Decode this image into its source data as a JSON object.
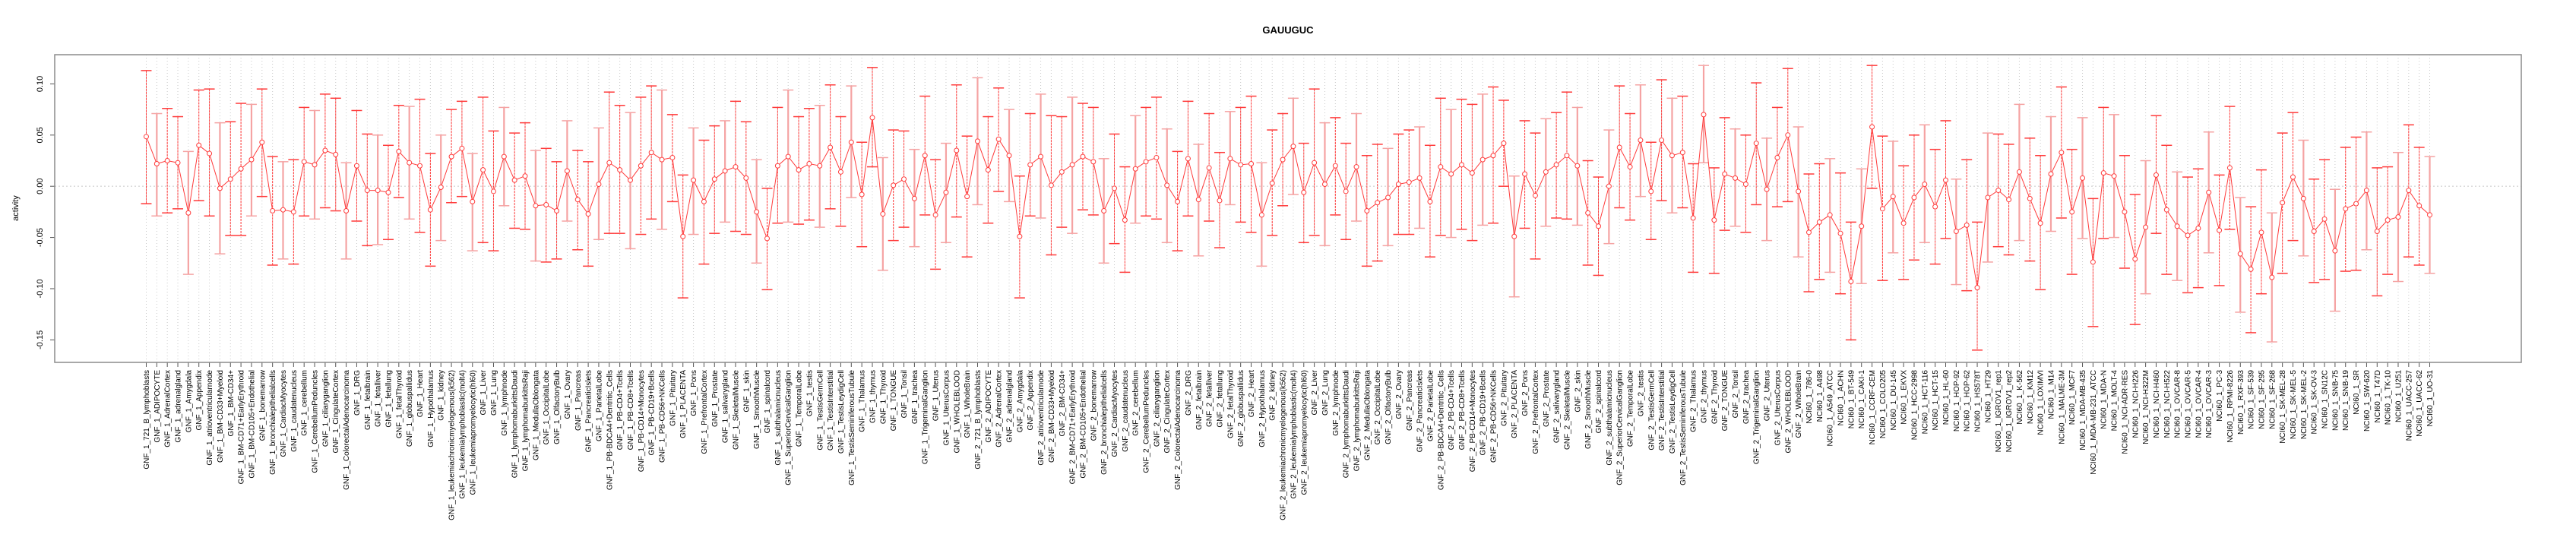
{
  "chart_data": {
    "type": "line",
    "title": "GAUUGUC",
    "xlabel": "",
    "ylabel": "activity",
    "ylim": [
      -0.172,
      0.1285
    ],
    "xlim": [
      -7.7,
      226.7
    ],
    "yticks": [
      -0.15,
      -0.1,
      -0.05,
      0.0,
      0.05,
      0.1
    ],
    "ytick_labels": [
      "-0.15",
      "-0.10",
      "-0.05",
      "0.00",
      "0.05",
      "0.10"
    ],
    "grid": "dotted vertical line per category, dotted horizontal line at 0",
    "colors": {
      "series": "#ff3b3b",
      "errorbar_light": "#f5a3a3",
      "grid": "#c8c8c8",
      "frame": "#8c8c8c"
    },
    "categories": [
      "GNF_1_721_B_lymphoblasts",
      "GNF_1_ADIPOCYTE",
      "GNF_1_AdrenalCortex",
      "GNF_1_adrenalgland",
      "GNF_1_Amygdala",
      "GNF_1_Appendix",
      "GNF_1_atrioventricularnode",
      "GNF_1_BM-CD33+Myeloid",
      "GNF_1_BM-CD34+",
      "GNF_1_BM-CD71+EarlyErythroid",
      "GNF_1_BM-CD105+Endothelial",
      "GNF_1_bonemarrow",
      "GNF_1_bronchialepithelialcells",
      "GNF_1_CardiacMyocytes",
      "GNF_1_caudatenucleus",
      "GNF_1_cerebellum",
      "GNF_1_CerebellumPeduncles",
      "GNF_1_ciliaryganglion",
      "GNF_1_CingulateCortex",
      "GNF_1_ColorectalAdenocarcinoma",
      "GNF_1_DRG",
      "GNF_1_fetalbrain",
      "GNF_1_fetalliver",
      "GNF_1_fetallung",
      "GNF_1_fetalThyroid",
      "GNF_1_globuspallidus",
      "GNF_1_Heart",
      "GNF_1_Hypothalamus",
      "GNF_1_kidney",
      "GNF_1_leukemiachronicmyelogenous(k562)",
      "GNF_1_leukemialymphoblastic(molt4)",
      "GNF_1_leukemiapromyelocytic(hl60)",
      "GNF_1_Liver",
      "GNF_1_Lung",
      "GNF_1_lymphnode",
      "GNF_1_lymphomaburkittsDaudi",
      "GNF_1_lymphomaburkittsRaji",
      "GNF_1_MedullaOblongata",
      "GNF_1_OccipitalLobe",
      "GNF_1_OlfactoryBulb",
      "GNF_1_Ovary",
      "GNF_1_Pancreas",
      "GNF_1_PancreaticIslets",
      "GNF_1_ParietalLobe",
      "GNF_1_PB-BDCA4+Dentritic_Cells",
      "GNF_1_PB-CD4+Tcells",
      "GNF_1_PB-CD8+Tcells",
      "GNF_1_PB-CD14+Monocytes",
      "GNF_1_PB-CD19+Bcells",
      "GNF_1_PB-CD56+NKCells",
      "GNF_1_Pituitary",
      "GNF_1_PLACENTA",
      "GNF_1_Pons",
      "GNF_1_PrefrontalCortex",
      "GNF_1_Prostate",
      "GNF_1_salivarygland",
      "GNF_1_SkeletalMuscle",
      "GNF_1_skin",
      "GNF_1_SmoothMuscle",
      "GNF_1_spinalcord",
      "GNF_1_subthalamicnucleus",
      "GNF_1_SuperiorCervicalGanglion",
      "GNF_1_TemporalLobe",
      "GNF_1_testis",
      "GNF_1_TestisGermCell",
      "GNF_1_TestisInterstitial",
      "GNF_1_TestisLeydigCell",
      "GNF_1_TestisSeminiferousTubule",
      "GNF_1_Thalamus",
      "GNF_1_thymus",
      "GNF_1_Thyroid",
      "GNF_1_TONGUE",
      "GNF_1_Tonsil",
      "GNF_1_trachea",
      "GNF_1_TrigeminalGanglion",
      "GNF_1_Uterus",
      "GNF_1_UterusCorpus",
      "GNF_1_WHOLEBLOOD",
      "GNF_1_WholeBrain",
      "GNF_2_721_B_lymphoblasts",
      "GNF_2_ADIPOCYTE",
      "GNF_2_AdrenalCortex",
      "GNF_2_adrenalgland",
      "GNF_2_Amygdala",
      "GNF_2_Appendix",
      "GNF_2_atrioventricularnode",
      "GNF_2_BM-CD33+Myeloid",
      "GNF_2_BM-CD34+",
      "GNF_2_BM-CD71+EarlyErythroid",
      "GNF_2_BM-CD105+Endothelial",
      "GNF_2_bonemarrow",
      "GNF_2_bronchialepithelialcells",
      "GNF_2_CardiacMyocytes",
      "GNF_2_caudatenucleus",
      "GNF_2_cerebellum",
      "GNF_2_CerebellumPeduncles",
      "GNF_2_ciliaryganglion",
      "GNF_2_CingulateCortex",
      "GNF_2_ColorectalAdenocarcinoma",
      "GNF_2_DRG",
      "GNF_2_fetalbrain",
      "GNF_2_fetalliver",
      "GNF_2_fetallung",
      "GNF_2_fetalThyroid",
      "GNF_2_globuspallidus",
      "GNF_2_Heart",
      "GNF_2_Hypothalamus",
      "GNF_2_kidney",
      "GNF_2_leukemiachronicmyelogenous(k562)",
      "GNF_2_leukemialymphoblastic(molt4)",
      "GNF_2_leukemiapromyelocytic(hl60)",
      "GNF_2_Liver",
      "GNF_2_Lung",
      "GNF_2_lymphnode",
      "GNF_2_lymphomaburkittsDaudi",
      "GNF_2_lymphomaburkittsRaji",
      "GNF_2_MedullaOblongata",
      "GNF_2_OccipitalLobe",
      "GNF_2_OlfactoryBulb",
      "GNF_2_Ovary",
      "GNF_2_Pancreas",
      "GNF_2_PancreaticIslets",
      "GNF_2_ParietalLobe",
      "GNF_2_PB-BDCA4+Dentritic_Cells",
      "GNF_2_PB-CD4+Tcells",
      "GNF_2_PB-CD8+Tcells",
      "GNF_2_PB-CD14+Monocytes",
      "GNF_2_PB-CD19+Bcells",
      "GNF_2_PB-CD56+NKCells",
      "GNF_2_Pituitary",
      "GNF_2_PLACENTA",
      "GNF_2_Pons",
      "GNF_2_PrefrontalCortex",
      "GNF_2_Prostate",
      "GNF_2_salivarygland",
      "GNF_2_SkeletalMuscle",
      "GNF_2_skin",
      "GNF_2_SmoothMuscle",
      "GNF_2_spinalcord",
      "GNF_2_subthalamicnucleus",
      "GNF_2_SuperiorCervicalGanglion",
      "GNF_2_TemporalLobe",
      "GNF_2_testis",
      "GNF_2_TestisGermCell",
      "GNF_2_TestisInterstitial",
      "GNF_2_TestisLeydigCell",
      "GNF_2_TestisSeminiferousTubule",
      "GNF_2_Thalamus",
      "GNF_2_thymus",
      "GNF_2_Thyroid",
      "GNF_2_TONGUE",
      "GNF_2_Tonsil",
      "GNF_2_trachea",
      "GNF_2_TrigeminalGanglion",
      "GNF_2_Uterus",
      "GNF_2_UterusCorpus",
      "GNF_2_WHOLEBLOOD",
      "GNF_2_WholeBrain",
      "NCI60_1_786-0",
      "NCI60_1_A498",
      "NCI60_1_A549_ATCC",
      "NCI60_1_ACHN",
      "NCI60_1_BT-549",
      "NCI60_1_CAKI-1",
      "NCI60_1_CCRF-CEM",
      "NCI60_1_COLO205",
      "NCI60_1_DU-145",
      "NCI60_1_EKVX",
      "NCI60_1_HCC-2998",
      "NCI60_1_HCT-116",
      "NCI60_1_HCT-15",
      "NCI60_1_HL-60",
      "NCI60_1_HOP-92",
      "NCI60_1_HOP-62",
      "NCI60_1_HS578T",
      "NCI60_1_HT29",
      "NCI60_1_IGROV1_rep1",
      "NCI60_1_IGROV1_rep2",
      "NCI60_1_K-562",
      "NCI60_1_KM12",
      "NCI60_1_LOXIMVI",
      "NCI60_1_M14",
      "NCI60_1_MALME-3M",
      "NCI60_1_MCF7",
      "NCI60_1_MDA-MB-435",
      "NCI60_1_MDA-MB-231_ATCC",
      "NCI60_1_MDA-N",
      "NCI60_1_MOLT-4",
      "NCI60_1_NCI-ADR-RES",
      "NCI60_1_NCI-H226",
      "NCI60_1_NCI-H322M",
      "NCI60_1_NCI-H460",
      "NCI60_1_NCI-H522",
      "NCI60_1_OVCAR-8",
      "NCI60_1_OVCAR-5",
      "NCI60_1_OVCAR-4",
      "NCI60_1_OVCAR-3",
      "NCI60_1_PC-3",
      "NCI60_1_RPMI-8226",
      "NCI60_1_RXF-393",
      "NCI60_1_SF-539",
      "NCI60_1_SF-295",
      "NCI60_1_SF-268",
      "NCI60_1_SK-MEL-28",
      "NCI60_1_SK-MEL-5",
      "NCI60_1_SK-MEL-2",
      "NCI60_1_SK-OV-3",
      "NCI60_1_SN12C",
      "NCI60_1_SNB-75",
      "NCI60_1_SNB-19",
      "NCI60_1_SR",
      "NCI60_1_SW-620",
      "NCI60_1_T47D",
      "NCI60_1_TK-10",
      "NCI60_1_U251",
      "NCI60_1_UACC-257",
      "NCI60_1_UACC-62",
      "NCI60_1_UO-31"
    ],
    "series": [
      {
        "name": "activity",
        "values": [
          0.0485,
          0.022,
          0.025,
          0.023,
          -0.026,
          0.04,
          0.032,
          -0.002,
          0.007,
          0.017,
          0.026,
          0.043,
          -0.024,
          -0.023,
          -0.025,
          0.024,
          0.021,
          0.035,
          0.031,
          -0.024,
          0.02,
          -0.004,
          -0.004,
          -0.006,
          0.034,
          0.023,
          0.02,
          -0.023,
          -0.001,
          0.029,
          0.037,
          -0.015,
          0.016,
          -0.005,
          0.029,
          0.006,
          0.01,
          -0.019,
          -0.018,
          -0.024,
          0.015,
          -0.013,
          -0.027,
          0.002,
          0.023,
          0.016,
          0.006,
          0.02,
          0.033,
          0.026,
          0.028,
          -0.049,
          0.006,
          -0.015,
          0.007,
          0.015,
          0.019,
          0.008,
          -0.025,
          -0.051,
          0.02,
          0.029,
          0.016,
          0.022,
          0.02,
          0.038,
          0.014,
          0.043,
          -0.008,
          0.067,
          -0.027,
          0.001,
          0.007,
          -0.012,
          0.03,
          -0.028,
          -0.006,
          0.035,
          -0.01,
          0.044,
          0.016,
          0.046,
          0.03,
          -0.049,
          0.021,
          0.029,
          0.001,
          0.014,
          0.021,
          0.029,
          0.024,
          -0.024,
          -0.002,
          -0.033,
          0.017,
          0.024,
          0.028,
          0.001,
          -0.015,
          0.027,
          -0.013,
          0.018,
          -0.014,
          0.027,
          0.021,
          0.022,
          -0.028,
          0.003,
          0.026,
          0.039,
          -0.006,
          0.023,
          0.002,
          0.02,
          -0.005,
          0.019,
          -0.024,
          -0.016,
          -0.011,
          0.002,
          0.004,
          0.008,
          -0.015,
          0.019,
          0.012,
          0.021,
          0.013,
          0.026,
          0.03,
          0.042,
          -0.049,
          0.012,
          -0.009,
          0.014,
          0.021,
          0.03,
          0.02,
          -0.026,
          -0.039,
          0.0,
          0.038,
          0.019,
          0.045,
          -0.005,
          0.045,
          0.03,
          0.033,
          -0.031,
          0.07,
          -0.033,
          0.012,
          0.008,
          0.002,
          0.042,
          -0.003,
          0.028,
          0.05,
          -0.005,
          -0.045,
          -0.035,
          -0.028,
          -0.046,
          -0.093,
          -0.039,
          0.058,
          -0.022,
          -0.01,
          -0.036,
          -0.011,
          0.002,
          -0.02,
          0.006,
          -0.044,
          -0.038,
          -0.099,
          -0.011,
          -0.004,
          -0.013,
          0.014,
          -0.012,
          -0.036,
          0.012,
          0.033,
          -0.025,
          0.008,
          -0.074,
          0.013,
          0.01,
          -0.025,
          -0.071,
          -0.04,
          0.011,
          -0.023,
          -0.039,
          -0.048,
          -0.041,
          -0.006,
          -0.043,
          0.018,
          -0.066,
          -0.081,
          -0.045,
          -0.089,
          -0.016,
          0.009,
          -0.012,
          -0.044,
          -0.032,
          -0.063,
          -0.022,
          -0.017,
          -0.004,
          -0.044,
          -0.033,
          -0.03,
          -0.004,
          -0.019,
          -0.028
        ],
        "upper": [
          0.113,
          0.071,
          0.076,
          0.068,
          0.034,
          0.094,
          0.095,
          0.062,
          0.063,
          0.081,
          0.08,
          0.095,
          0.029,
          0.024,
          0.026,
          0.077,
          0.074,
          0.09,
          0.086,
          0.023,
          0.074,
          0.051,
          0.05,
          0.04,
          0.079,
          0.078,
          0.085,
          0.032,
          0.05,
          0.075,
          0.083,
          0.032,
          0.087,
          0.054,
          0.077,
          0.052,
          0.062,
          0.035,
          0.037,
          0.024,
          0.064,
          0.035,
          0.024,
          0.057,
          0.092,
          0.079,
          0.072,
          0.087,
          0.098,
          0.094,
          0.07,
          0.011,
          0.057,
          0.045,
          0.059,
          0.064,
          0.083,
          0.063,
          0.026,
          -0.002,
          0.077,
          0.094,
          0.068,
          0.076,
          0.079,
          0.099,
          0.068,
          0.098,
          0.043,
          0.116,
          0.028,
          0.055,
          0.054,
          0.036,
          0.088,
          0.026,
          0.042,
          0.099,
          0.049,
          0.106,
          0.068,
          0.096,
          0.075,
          0.01,
          0.071,
          0.09,
          0.069,
          0.068,
          0.087,
          0.081,
          0.077,
          0.027,
          0.051,
          0.019,
          0.069,
          0.077,
          0.087,
          0.056,
          0.034,
          0.083,
          0.041,
          0.071,
          0.033,
          0.073,
          0.077,
          0.088,
          0.023,
          0.055,
          0.071,
          0.086,
          0.042,
          0.095,
          0.062,
          0.067,
          0.042,
          0.071,
          0.03,
          0.041,
          0.037,
          0.051,
          0.055,
          0.058,
          0.04,
          0.086,
          0.075,
          0.085,
          0.08,
          0.09,
          0.097,
          0.084,
          0.01,
          0.064,
          0.052,
          0.066,
          0.072,
          0.092,
          0.077,
          0.025,
          0.009,
          0.055,
          0.098,
          0.071,
          0.099,
          0.043,
          0.104,
          0.086,
          0.088,
          0.022,
          0.118,
          0.018,
          0.067,
          0.056,
          0.05,
          0.101,
          0.047,
          0.077,
          0.115,
          0.058,
          0.012,
          0.022,
          0.027,
          0.013,
          -0.035,
          0.017,
          0.118,
          0.049,
          0.044,
          0.02,
          0.05,
          0.06,
          0.036,
          0.064,
          0.007,
          0.026,
          -0.035,
          0.052,
          0.051,
          0.041,
          0.08,
          0.047,
          0.03,
          0.068,
          0.097,
          0.036,
          0.067,
          -0.012,
          0.077,
          0.07,
          0.03,
          -0.008,
          0.025,
          0.069,
          0.04,
          0.014,
          0.009,
          0.017,
          0.053,
          0.011,
          0.078,
          -0.011,
          -0.02,
          0.016,
          -0.026,
          0.052,
          0.072,
          0.045,
          0.007,
          0.026,
          -0.003,
          0.038,
          0.048,
          0.053,
          0.018,
          0.019,
          0.033,
          0.06,
          0.038,
          0.029
        ],
        "lower": [
          -0.017,
          -0.029,
          -0.026,
          -0.022,
          -0.086,
          -0.014,
          -0.029,
          -0.066,
          -0.048,
          -0.048,
          -0.029,
          -0.01,
          -0.077,
          -0.071,
          -0.076,
          -0.029,
          -0.032,
          -0.021,
          -0.024,
          -0.071,
          -0.034,
          -0.058,
          -0.057,
          -0.052,
          -0.011,
          -0.032,
          -0.045,
          -0.078,
          -0.053,
          -0.016,
          -0.01,
          -0.063,
          -0.055,
          -0.063,
          -0.019,
          -0.041,
          -0.042,
          -0.073,
          -0.074,
          -0.071,
          -0.034,
          -0.062,
          -0.078,
          -0.052,
          -0.046,
          -0.046,
          -0.061,
          -0.047,
          -0.032,
          -0.042,
          -0.015,
          -0.109,
          -0.047,
          -0.076,
          -0.046,
          -0.035,
          -0.044,
          -0.047,
          -0.075,
          -0.101,
          -0.036,
          -0.035,
          -0.037,
          -0.033,
          -0.04,
          -0.022,
          -0.039,
          -0.011,
          -0.059,
          0.019,
          -0.082,
          -0.053,
          -0.04,
          -0.059,
          -0.028,
          -0.081,
          -0.055,
          -0.03,
          -0.069,
          -0.018,
          -0.036,
          -0.005,
          -0.015,
          -0.109,
          -0.029,
          -0.031,
          -0.067,
          -0.04,
          -0.046,
          -0.023,
          -0.028,
          -0.075,
          -0.056,
          -0.084,
          -0.036,
          -0.029,
          -0.032,
          -0.055,
          -0.063,
          -0.029,
          -0.068,
          -0.034,
          -0.06,
          -0.018,
          -0.035,
          -0.045,
          -0.078,
          -0.048,
          -0.019,
          -0.008,
          -0.055,
          -0.048,
          -0.058,
          -0.028,
          -0.052,
          -0.034,
          -0.078,
          -0.073,
          -0.058,
          -0.047,
          -0.047,
          -0.041,
          -0.069,
          -0.048,
          -0.05,
          -0.042,
          -0.053,
          -0.038,
          -0.036,
          0.0,
          -0.108,
          -0.041,
          -0.071,
          -0.039,
          -0.031,
          -0.032,
          -0.038,
          -0.077,
          -0.087,
          -0.056,
          -0.021,
          -0.033,
          -0.01,
          -0.052,
          -0.014,
          -0.026,
          -0.021,
          -0.084,
          0.023,
          -0.085,
          -0.043,
          -0.039,
          -0.045,
          -0.018,
          -0.053,
          -0.02,
          -0.015,
          -0.069,
          -0.103,
          -0.091,
          -0.084,
          -0.105,
          -0.15,
          -0.095,
          -0.002,
          -0.092,
          -0.065,
          -0.091,
          -0.072,
          -0.055,
          -0.076,
          -0.051,
          -0.096,
          -0.102,
          -0.16,
          -0.074,
          -0.059,
          -0.067,
          -0.053,
          -0.073,
          -0.101,
          -0.044,
          -0.031,
          -0.086,
          -0.051,
          -0.137,
          -0.051,
          -0.05,
          -0.08,
          -0.135,
          -0.105,
          -0.046,
          -0.086,
          -0.092,
          -0.104,
          -0.099,
          -0.065,
          -0.097,
          -0.042,
          -0.123,
          -0.143,
          -0.105,
          -0.152,
          -0.085,
          -0.053,
          -0.068,
          -0.094,
          -0.091,
          -0.122,
          -0.083,
          -0.082,
          -0.062,
          -0.107,
          -0.086,
          -0.093,
          -0.069,
          -0.077,
          -0.085
        ]
      }
    ]
  }
}
